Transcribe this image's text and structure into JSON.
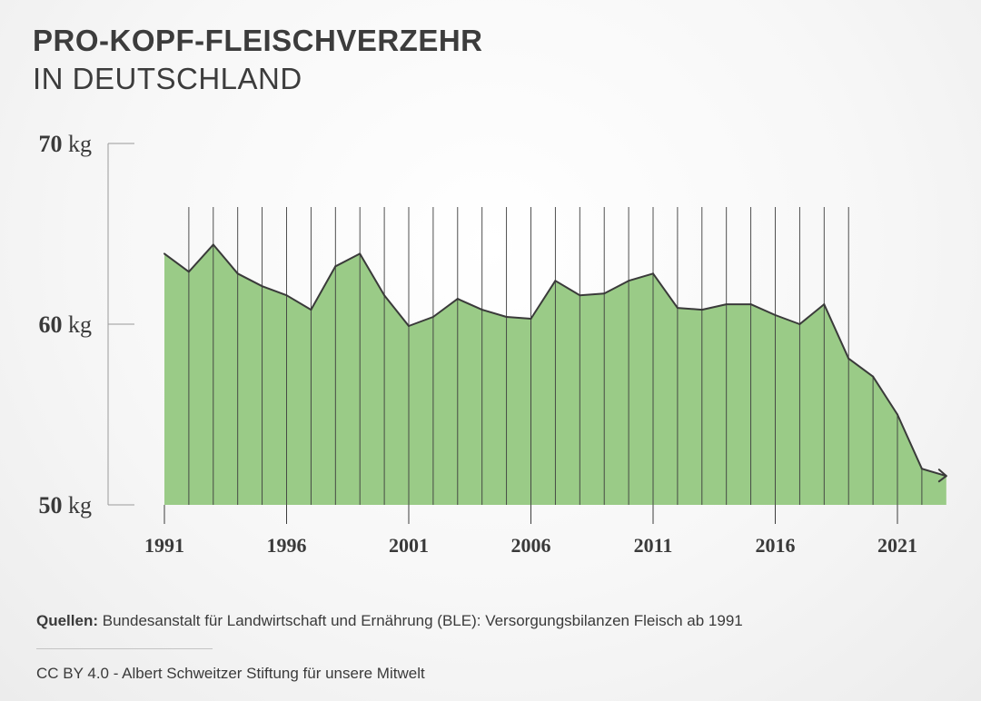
{
  "header": {
    "title": "PRO-KOPF-FLEISCHVERZEHR",
    "subtitle": "IN DEUTSCHLAND"
  },
  "footer": {
    "source_label": "Quellen:",
    "source_text": " Bundesanstalt für Landwirtschaft und Ernährung (BLE): Versorgungsbilanzen Fleisch ab 1991",
    "license": "CC BY 4.0 -  Albert Schweitzer Stiftung für unsere Mitwelt"
  },
  "colors": {
    "area_fill": "#9acb87",
    "line": "#3a3a3a",
    "text": "#3a3a3a",
    "axis": "#9a9a9a"
  },
  "chart_data": {
    "type": "area",
    "title": "PRO-KOPF-FLEISCHVERZEHR",
    "subtitle": "IN DEUTSCHLAND",
    "xlabel": "",
    "ylabel": "",
    "y_unit": "kg",
    "ylim": [
      50,
      70
    ],
    "y_ticks": [
      {
        "value": 70,
        "num": "70",
        "unit": "kg"
      },
      {
        "value": 60,
        "num": "60",
        "unit": "kg"
      },
      {
        "value": 50,
        "num": "50",
        "unit": "kg"
      }
    ],
    "x_ticks": [
      1991,
      1996,
      2001,
      2006,
      2011,
      2016,
      2021
    ],
    "x": [
      1991,
      1992,
      1993,
      1994,
      1995,
      1996,
      1997,
      1998,
      1999,
      2000,
      2001,
      2002,
      2003,
      2004,
      2005,
      2006,
      2007,
      2008,
      2009,
      2010,
      2011,
      2012,
      2013,
      2014,
      2015,
      2016,
      2017,
      2018,
      2019,
      2020,
      2021,
      2022,
      2023
    ],
    "values": [
      63.9,
      62.9,
      64.4,
      62.8,
      62.1,
      61.6,
      60.8,
      63.2,
      63.9,
      61.6,
      59.9,
      60.4,
      61.4,
      60.8,
      60.4,
      60.3,
      62.4,
      61.6,
      61.7,
      62.4,
      62.8,
      60.9,
      60.8,
      61.1,
      61.1,
      60.5,
      60.0,
      61.1,
      58.1,
      57.1,
      55.0,
      52.0,
      51.6
    ],
    "grid": "vertical lines at each year",
    "legend": "none"
  }
}
